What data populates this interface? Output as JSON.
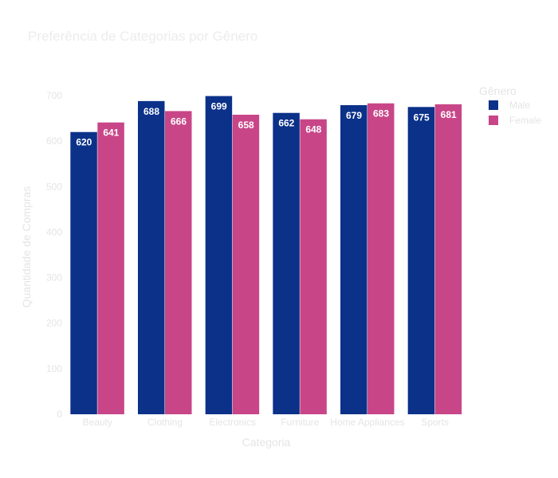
{
  "chart_data": {
    "type": "bar",
    "title": "Preferência de Categorias por Gênero",
    "xlabel": "Categoria",
    "ylabel": "Quantidade de Compras",
    "categories": [
      "Beauty",
      "Clothing",
      "Electronics",
      "Furniture",
      "Home Appliances",
      "Sports"
    ],
    "series": [
      {
        "name": "Male",
        "color": "#0b3189",
        "values": [
          620,
          688,
          699,
          662,
          679,
          675
        ]
      },
      {
        "name": "Female",
        "color": "#c84688",
        "values": [
          641,
          666,
          658,
          648,
          683,
          681
        ]
      }
    ],
    "ylim": [
      0,
      700
    ],
    "yticks": [
      0,
      100,
      200,
      300,
      400,
      500,
      600,
      700
    ],
    "legend": {
      "title": "Gênero",
      "position": "top-right"
    },
    "grid": false,
    "barmode": "group",
    "data_labels": "inside-top"
  }
}
